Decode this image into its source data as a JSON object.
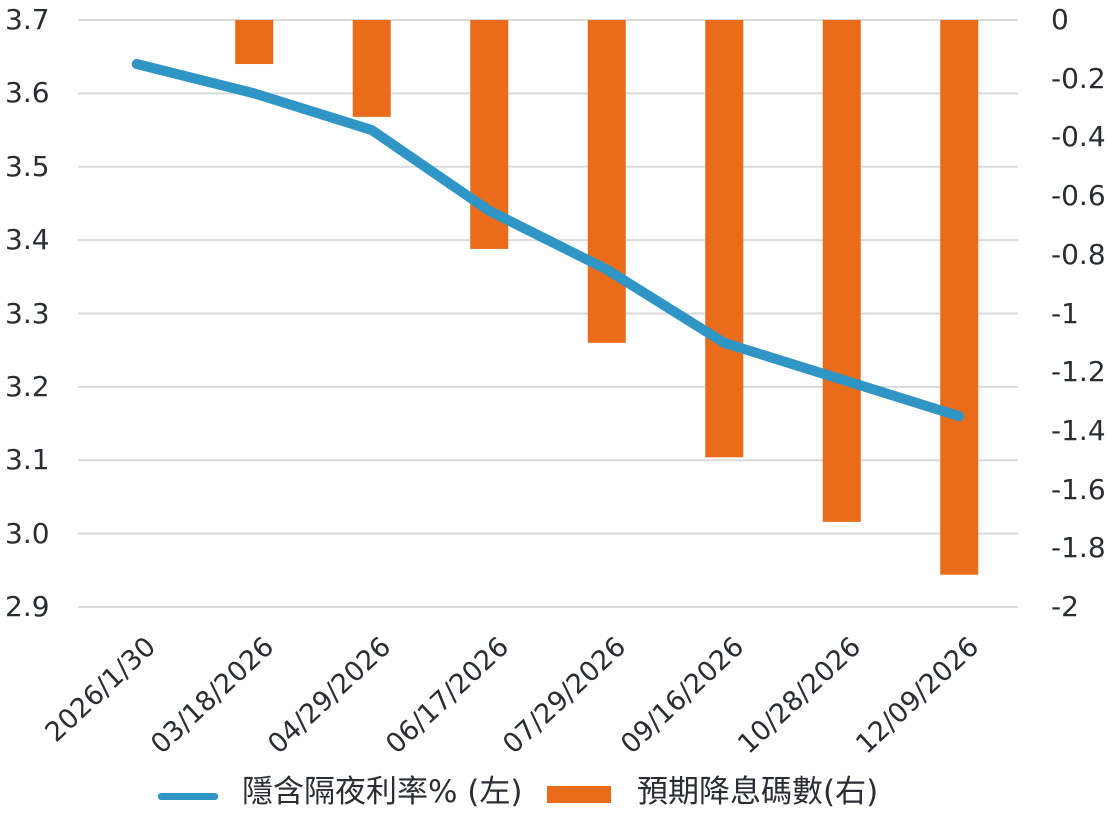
{
  "chart_data": {
    "type": "combo-line-bar",
    "categories": [
      "2026/1/30",
      "03/18/2026",
      "04/29/2026",
      "06/17/2026",
      "07/29/2026",
      "09/16/2026",
      "10/28/2026",
      "12/09/2026"
    ],
    "series": [
      {
        "name": "隱含隔夜利率% (左)",
        "type": "line",
        "axis": "left",
        "color": "#2e95c5",
        "values": [
          3.64,
          3.6,
          3.55,
          3.44,
          3.36,
          3.26,
          3.21,
          3.16
        ]
      },
      {
        "name": "預期降息碼數(右)",
        "type": "bar",
        "axis": "right",
        "color": "#ea6c1a",
        "values": [
          null,
          -0.15,
          -0.33,
          -0.78,
          -1.1,
          -1.49,
          -1.71,
          -1.89
        ]
      }
    ],
    "left_axis": {
      "min": 2.9,
      "max": 3.7,
      "ticks": [
        {
          "label": "3.7",
          "value": 3.7
        },
        {
          "label": "3.6",
          "value": 3.6
        },
        {
          "label": "3.5",
          "value": 3.5
        },
        {
          "label": "3.4",
          "value": 3.4
        },
        {
          "label": "3.3",
          "value": 3.3
        },
        {
          "label": "3.2",
          "value": 3.2
        },
        {
          "label": "3.1",
          "value": 3.1
        },
        {
          "label": "3.0",
          "value": 3.0
        },
        {
          "label": "2.9",
          "value": 2.9
        }
      ]
    },
    "right_axis": {
      "min": -2,
      "max": 0,
      "ticks": [
        {
          "label": "0",
          "value": 0
        },
        {
          "label": "-0.2",
          "value": -0.2
        },
        {
          "label": "-0.4",
          "value": -0.4
        },
        {
          "label": "-0.6",
          "value": -0.6
        },
        {
          "label": "-0.8",
          "value": -0.8
        },
        {
          "label": "-1",
          "value": -1
        },
        {
          "label": "-1.2",
          "value": -1.2
        },
        {
          "label": "-1.4",
          "value": -1.4
        },
        {
          "label": "-1.6",
          "value": -1.6
        },
        {
          "label": "-1.8",
          "value": -1.8
        },
        {
          "label": "-2",
          "value": -2
        }
      ]
    },
    "grid": true,
    "grid_color": "#d9dadd",
    "legend_position": "bottom"
  },
  "legend": {
    "line_label": "隱含隔夜利率% (左)",
    "bar_label": "預期降息碼數(右)"
  }
}
